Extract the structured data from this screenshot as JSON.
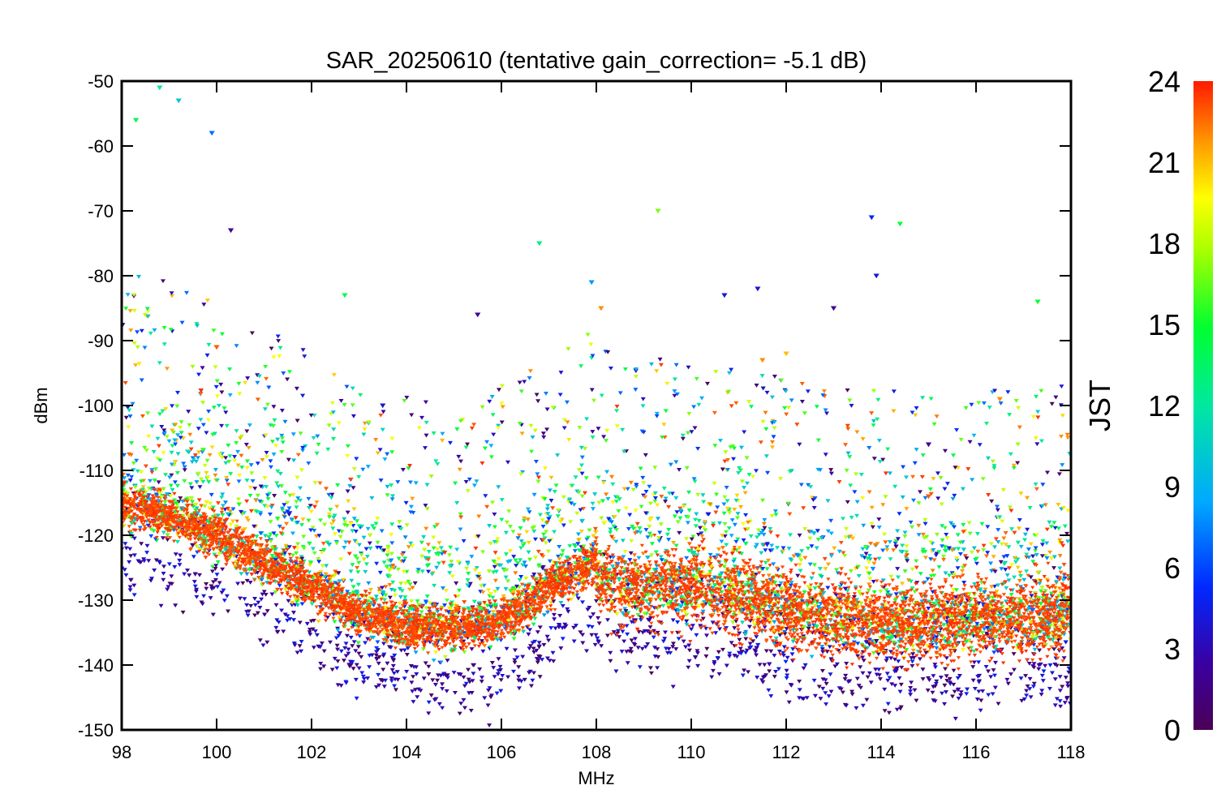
{
  "chart_data": {
    "type": "scatter",
    "title": "SAR_20250610 (tentative gain_correction= -5.1 dB)",
    "xlabel": "MHz",
    "ylabel": "dBm",
    "xlim": [
      98,
      118
    ],
    "ylim": [
      -150,
      -50
    ],
    "x_ticks": [
      "98",
      "100",
      "102",
      "104",
      "106",
      "108",
      "110",
      "112",
      "114",
      "116",
      "118"
    ],
    "y_ticks": [
      "-50",
      "-60",
      "-70",
      "-80",
      "-90",
      "-100",
      "-110",
      "-120",
      "-130",
      "-140",
      "-150"
    ],
    "grid": false,
    "colorbar": {
      "label": "JST",
      "range": [
        0,
        24
      ],
      "ticks": [
        "0",
        "3",
        "6",
        "9",
        "12",
        "15",
        "18",
        "21",
        "24"
      ],
      "colormap": "rainbow"
    },
    "noise_floor": {
      "description_series_color": "#ff3a00",
      "x": [
        98,
        99,
        100,
        101,
        102,
        103,
        104,
        105,
        106,
        106.5,
        107,
        107.5,
        108,
        108.05,
        109,
        110,
        111,
        112,
        113,
        114,
        115,
        116,
        117,
        118
      ],
      "y": [
        -115,
        -117,
        -120,
        -124,
        -128,
        -132,
        -134,
        -134.5,
        -133,
        -131,
        -128,
        -126,
        -124,
        -127,
        -128,
        -128,
        -129,
        -132,
        -133,
        -133.5,
        -133.5,
        -133,
        -133,
        -132
      ]
    },
    "notable_points": [
      {
        "x": 98.3,
        "y": -56,
        "jst": 14
      },
      {
        "x": 98.8,
        "y": -51,
        "jst": 12
      },
      {
        "x": 99.2,
        "y": -53,
        "jst": 10
      },
      {
        "x": 99.9,
        "y": -58,
        "jst": 7
      },
      {
        "x": 100.3,
        "y": -73,
        "jst": 2
      },
      {
        "x": 100.0,
        "y": -91,
        "jst": 23
      },
      {
        "x": 102.7,
        "y": -83,
        "jst": 14
      },
      {
        "x": 103.5,
        "y": -100,
        "jst": 4
      },
      {
        "x": 105.5,
        "y": -86,
        "jst": 2
      },
      {
        "x": 106.8,
        "y": -75,
        "jst": 13
      },
      {
        "x": 107.9,
        "y": -81,
        "jst": 8
      },
      {
        "x": 108.1,
        "y": -85,
        "jst": 22
      },
      {
        "x": 109.3,
        "y": -70,
        "jst": 17
      },
      {
        "x": 110.7,
        "y": -83,
        "jst": 4
      },
      {
        "x": 111.4,
        "y": -82,
        "jst": 4
      },
      {
        "x": 111.5,
        "y": -93,
        "jst": 22
      },
      {
        "x": 112.0,
        "y": -92,
        "jst": 21
      },
      {
        "x": 113.0,
        "y": -85,
        "jst": 2
      },
      {
        "x": 113.8,
        "y": -71,
        "jst": 5
      },
      {
        "x": 113.9,
        "y": -80,
        "jst": 4
      },
      {
        "x": 114.4,
        "y": -72,
        "jst": 15
      },
      {
        "x": 115.0,
        "y": -106,
        "jst": 2
      },
      {
        "x": 115.0,
        "y": -114,
        "jst": 23
      },
      {
        "x": 116.5,
        "y": -99,
        "jst": 22
      },
      {
        "x": 117.3,
        "y": -84,
        "jst": 15
      }
    ]
  }
}
